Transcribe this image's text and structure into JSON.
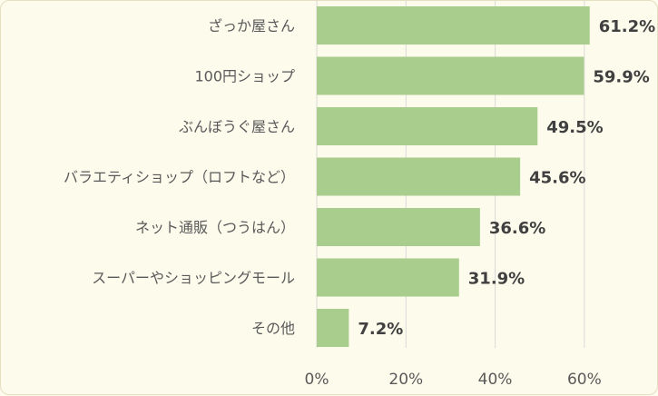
{
  "chart_data": {
    "type": "bar",
    "orientation": "horizontal",
    "categories": [
      "ざっか屋さん",
      "100円ショップ",
      "ぶんぼうぐ屋さん",
      "バラエティショップ（ロフトなど）",
      "ネット通販（つうはん）",
      "スーパーやショッピングモール",
      "その他"
    ],
    "values": [
      61.2,
      59.9,
      49.5,
      45.6,
      36.6,
      31.9,
      7.2
    ],
    "value_labels": [
      "61.2%",
      "59.9%",
      "49.5%",
      "45.6%",
      "36.6%",
      "31.9%",
      "7.2%"
    ],
    "x_ticks": [
      "0%",
      "20%",
      "40%",
      "60%"
    ],
    "xlim": [
      0,
      70
    ],
    "grid": true,
    "legend": "none",
    "colors": {
      "bar": "#a9cd8c",
      "grid": "#d9d9d9",
      "background": "#fdfbec"
    }
  }
}
